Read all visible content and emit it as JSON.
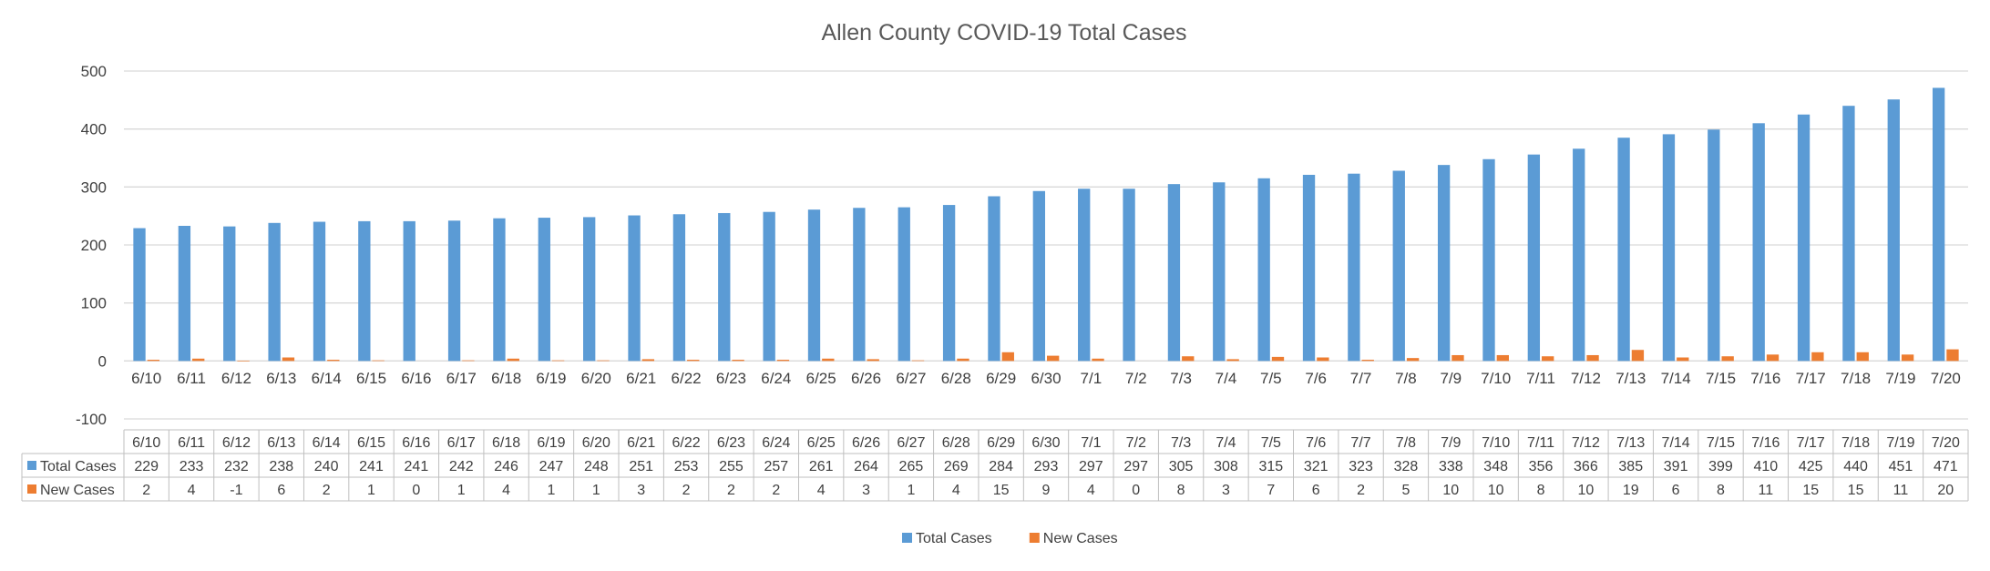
{
  "chart_data": {
    "type": "bar",
    "title": "Allen County COVID-19 Total Cases",
    "xlabel": "",
    "ylabel": "",
    "ylim": [
      -100,
      500
    ],
    "yticks": [
      -100,
      0,
      100,
      200,
      300,
      400,
      500
    ],
    "grid": true,
    "legend": "bottom",
    "data_table": true,
    "categories": [
      "6/10",
      "6/11",
      "6/12",
      "6/13",
      "6/14",
      "6/15",
      "6/16",
      "6/17",
      "6/18",
      "6/19",
      "6/20",
      "6/21",
      "6/22",
      "6/23",
      "6/24",
      "6/25",
      "6/26",
      "6/27",
      "6/28",
      "6/29",
      "6/30",
      "7/1",
      "7/2",
      "7/3",
      "7/4",
      "7/5",
      "7/6",
      "7/7",
      "7/8",
      "7/9",
      "7/10",
      "7/11",
      "7/12",
      "7/13",
      "7/14",
      "7/15",
      "7/16",
      "7/17",
      "7/18",
      "7/19",
      "7/20"
    ],
    "series": [
      {
        "name": "Total Cases",
        "color": "#5b9bd5",
        "values": [
          229,
          233,
          232,
          238,
          240,
          241,
          241,
          242,
          246,
          247,
          248,
          251,
          253,
          255,
          257,
          261,
          264,
          265,
          269,
          284,
          293,
          297,
          297,
          305,
          308,
          315,
          321,
          323,
          328,
          338,
          348,
          356,
          366,
          385,
          391,
          399,
          410,
          425,
          440,
          451,
          471
        ]
      },
      {
        "name": "New Cases",
        "color": "#ed7d31",
        "values": [
          2,
          4,
          -1,
          6,
          2,
          1,
          0,
          1,
          4,
          1,
          1,
          3,
          2,
          2,
          2,
          4,
          3,
          1,
          4,
          15,
          9,
          4,
          0,
          8,
          3,
          7,
          6,
          2,
          5,
          10,
          10,
          8,
          10,
          19,
          6,
          8,
          11,
          15,
          15,
          11,
          20
        ]
      }
    ]
  }
}
